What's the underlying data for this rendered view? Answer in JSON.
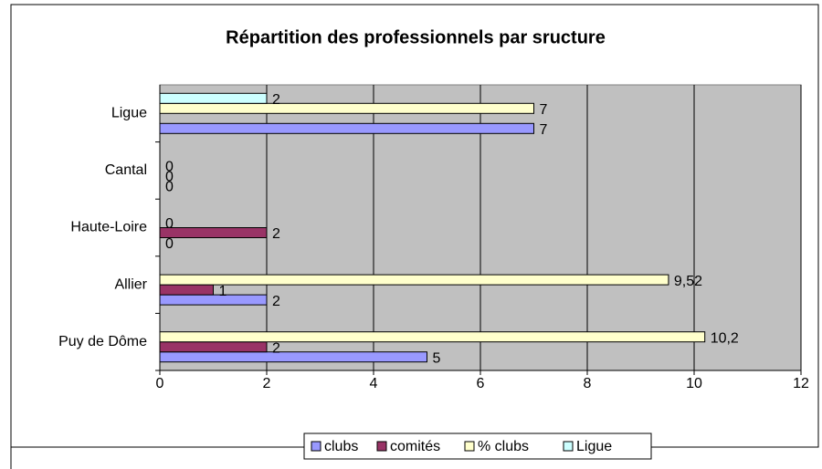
{
  "chart_data": {
    "type": "hbar",
    "title": "Répartition des professionnels par sructure",
    "categories": [
      "Puy de Dôme",
      "Allier",
      "Haute-Loire",
      "Cantal",
      "Ligue"
    ],
    "series": [
      {
        "name": "clubs",
        "color": "#9999ff",
        "values": [
          5,
          2,
          0,
          0,
          7
        ]
      },
      {
        "name": "comités",
        "color": "#993366",
        "values": [
          2,
          1,
          2,
          0,
          null
        ]
      },
      {
        "name": "% clubs",
        "color": "#ffffcc",
        "values": [
          10.2,
          9.52,
          0,
          0,
          7
        ],
        "value_labels": [
          "10,2",
          "9,52",
          "0",
          "0",
          "7"
        ]
      },
      {
        "name": "Ligue",
        "color": "#ccffff",
        "values": [
          null,
          null,
          null,
          null,
          2
        ]
      }
    ],
    "xlim": [
      0,
      12
    ],
    "xticks": [
      0,
      2,
      4,
      6,
      8,
      10,
      12
    ],
    "grid": true,
    "legend": "bottom",
    "plot_background": "#c0c0c0"
  }
}
